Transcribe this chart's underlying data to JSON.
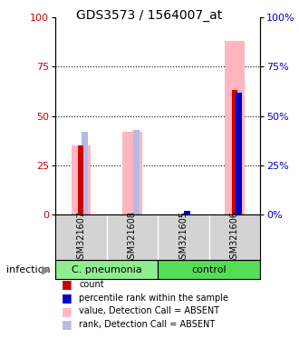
{
  "title": "GDS3573 / 1564007_at",
  "samples": [
    "GSM321607",
    "GSM321608",
    "GSM321605",
    "GSM321606"
  ],
  "ylim_left": [
    0,
    100
  ],
  "ylim_right": [
    0,
    100
  ],
  "yticks": [
    0,
    25,
    50,
    75,
    100
  ],
  "count_values": [
    35,
    0,
    0,
    63
  ],
  "percentile_values": [
    0,
    0,
    2,
    62
  ],
  "absent_bar_values": [
    35,
    42,
    0,
    88
  ],
  "absent_rank_values": [
    42,
    43,
    0,
    63
  ],
  "count_color": "#cc0000",
  "percentile_color": "#0000cc",
  "absent_bar_color": "#FFB6C1",
  "absent_rank_color": "#b8b8e8",
  "background_color": "#ffffff",
  "plot_bg_color": "#ffffff",
  "label_area_bg": "#d3d3d3",
  "cpneumonia_bg": "#90EE90",
  "control_bg": "#55dd55",
  "legend_items": [
    {
      "label": "count",
      "color": "#cc0000"
    },
    {
      "label": "percentile rank within the sample",
      "color": "#0000cc"
    },
    {
      "label": "value, Detection Call = ABSENT",
      "color": "#FFB6C1"
    },
    {
      "label": "rank, Detection Call = ABSENT",
      "color": "#b8b8e8"
    }
  ],
  "title_fontsize": 10,
  "tick_fontsize": 8,
  "sample_fontsize": 7,
  "group_fontsize": 8,
  "legend_fontsize": 7
}
